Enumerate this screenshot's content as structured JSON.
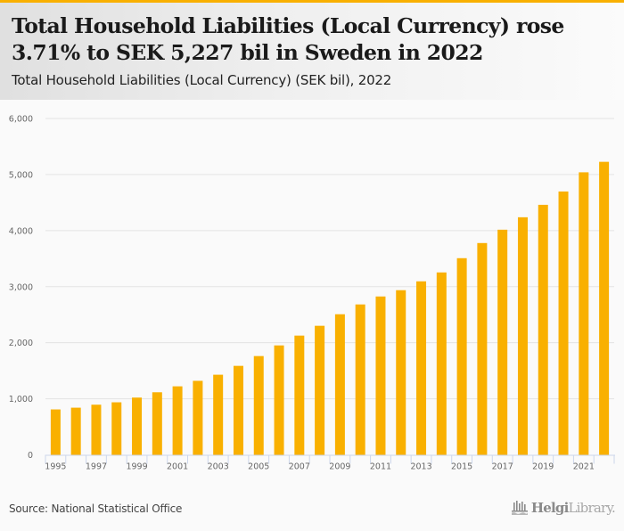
{
  "header": {
    "title": "Total Household Liabilities (Local Currency) rose 3.71% to SEK 5,227 bil in Sweden in 2022",
    "subtitle": "Total Household Liabilities (Local Currency) (SEK bil), 2022"
  },
  "footer": {
    "source": "Source: National Statistical Office",
    "logo_primary": "Helgi",
    "logo_secondary": "Library."
  },
  "colors": {
    "accent": "#f9b000",
    "bar": "#f9b000",
    "grid": "#e3e3e3",
    "axis": "#ccd6eb"
  },
  "chart_data": {
    "type": "bar",
    "title": "Total Household Liabilities (Local Currency) (SEK bil), 2022",
    "xlabel": "",
    "ylabel": "",
    "ylim": [
      0,
      6000
    ],
    "yticks": [
      0,
      1000,
      2000,
      3000,
      4000,
      5000,
      6000
    ],
    "ytick_labels": [
      "0",
      "1,000",
      "2,000",
      "3,000",
      "4,000",
      "5,000",
      "6,000"
    ],
    "grid": true,
    "legend": "none",
    "categories": [
      "1995",
      "1996",
      "1997",
      "1998",
      "1999",
      "2000",
      "2001",
      "2002",
      "2003",
      "2004",
      "2005",
      "2006",
      "2007",
      "2008",
      "2009",
      "2010",
      "2011",
      "2012",
      "2013",
      "2014",
      "2015",
      "2016",
      "2017",
      "2018",
      "2019",
      "2020",
      "2021",
      "2022"
    ],
    "xtick_labels": [
      "1995",
      "1997",
      "1999",
      "2001",
      "2003",
      "2005",
      "2007",
      "2009",
      "2011",
      "2013",
      "2015",
      "2017",
      "2019",
      "2021"
    ],
    "series": [
      {
        "name": "Total Household Liabilities (Local Currency) (SEK bil)",
        "values": [
          810,
          841,
          894,
          937,
          1021,
          1116,
          1222,
          1320,
          1429,
          1587,
          1762,
          1952,
          2127,
          2302,
          2508,
          2683,
          2825,
          2937,
          3095,
          3254,
          3508,
          3778,
          4016,
          4238,
          4460,
          4698,
          5040,
          5227
        ]
      }
    ]
  }
}
